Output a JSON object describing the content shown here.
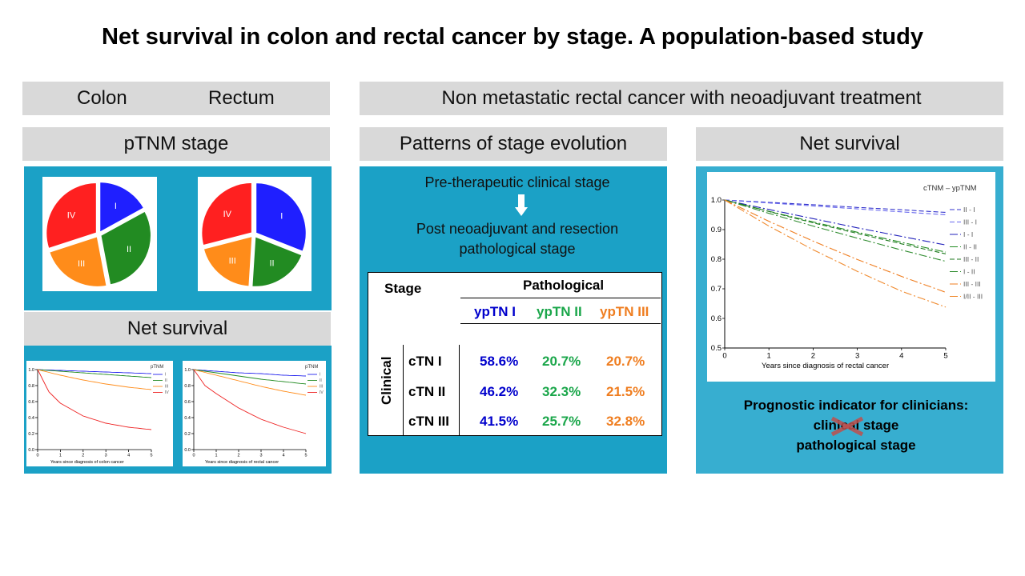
{
  "title": "Net survival in colon and rectal cancer by stage. A population-based study",
  "left_header": {
    "colon": "Colon",
    "rectum": "Rectum"
  },
  "right_header": "Non metastatic rectal cancer with neoadjuvant treatment",
  "sections": {
    "ptnm": "pTNM stage",
    "net_survival_left": "Net survival",
    "patterns": "Patterns of stage evolution",
    "net_survival_right": "Net survival"
  },
  "flow": {
    "step1": "Pre-therapeutic  clinical stage",
    "step2": "Post neoadjuvant and resection",
    "step3": "pathological stage"
  },
  "table": {
    "stage_label": "Stage",
    "pathological_label": "Pathological",
    "clinical_label": "Clinical",
    "cols": [
      "ypTN I",
      "ypTN II",
      "ypTN III"
    ],
    "rows": [
      {
        "label": "cTN I",
        "values": [
          "58.6%",
          "20.7%",
          "20.7%"
        ]
      },
      {
        "label": "cTN II",
        "values": [
          "46.2%",
          "32.3%",
          "21.5%"
        ]
      },
      {
        "label": "cTN III",
        "values": [
          "41.5%",
          "25.7%",
          "32.8%"
        ]
      }
    ]
  },
  "prognostic": {
    "line1": "Prognostic  indicator  for clinicians:",
    "line2": "clinical stage",
    "line3": "pathological stage"
  },
  "chart_data": [
    {
      "type": "pie",
      "title": "Colon",
      "slices": [
        {
          "label": "I",
          "value": 17,
          "color": "#1f1fff"
        },
        {
          "label": "II",
          "value": 30,
          "color": "#228b22"
        },
        {
          "label": "III",
          "value": 23,
          "color": "#ff8c1a"
        },
        {
          "label": "IV",
          "value": 30,
          "color": "#ff2020"
        }
      ]
    },
    {
      "type": "pie",
      "title": "Rectum",
      "slices": [
        {
          "label": "I",
          "value": 31,
          "color": "#1f1fff"
        },
        {
          "label": "II",
          "value": 20,
          "color": "#228b22"
        },
        {
          "label": "III",
          "value": 20,
          "color": "#ff8c1a"
        },
        {
          "label": "IV",
          "value": 29,
          "color": "#ff2020"
        }
      ]
    },
    {
      "type": "line",
      "legend_title": "pTNM",
      "xlabel": "Years  since  diagnosis  of   colon  cancer",
      "xlim": [
        0,
        5
      ],
      "ylim": [
        0,
        1
      ],
      "x_ticks": [
        0,
        1,
        2,
        3,
        4,
        5
      ],
      "y_ticks": [
        "0.0",
        "0.2",
        "0.4",
        "0.6",
        "0.8",
        "1.0"
      ],
      "series": [
        {
          "name": "I",
          "color": "#2222ee",
          "x": [
            0,
            1,
            2,
            3,
            4,
            5
          ],
          "y": [
            1.0,
            0.99,
            0.98,
            0.97,
            0.96,
            0.95
          ]
        },
        {
          "name": "II",
          "color": "#228b22",
          "x": [
            0,
            1,
            2,
            3,
            4,
            5
          ],
          "y": [
            1.0,
            0.98,
            0.96,
            0.94,
            0.92,
            0.9
          ]
        },
        {
          "name": "III",
          "color": "#ff8c1a",
          "x": [
            0,
            1,
            2,
            3,
            4,
            5
          ],
          "y": [
            1.0,
            0.93,
            0.87,
            0.82,
            0.78,
            0.75
          ]
        },
        {
          "name": "IV",
          "color": "#ee2222",
          "x": [
            0,
            0.5,
            1,
            2,
            3,
            4,
            5
          ],
          "y": [
            1.0,
            0.72,
            0.58,
            0.42,
            0.33,
            0.28,
            0.25
          ]
        }
      ]
    },
    {
      "type": "line",
      "legend_title": "pTNM",
      "xlabel": "Years since diagnosis of rectal cancer",
      "xlim": [
        0,
        5
      ],
      "ylim": [
        0,
        1
      ],
      "x_ticks": [
        0,
        1,
        2,
        3,
        4,
        5
      ],
      "y_ticks": [
        "0.0",
        "0.2",
        "0.4",
        "0.6",
        "0.8",
        "1.0"
      ],
      "series": [
        {
          "name": "I",
          "color": "#2222ee",
          "x": [
            0,
            1,
            2,
            3,
            4,
            5
          ],
          "y": [
            1.0,
            0.98,
            0.96,
            0.95,
            0.93,
            0.92
          ]
        },
        {
          "name": "II",
          "color": "#228b22",
          "x": [
            0,
            1,
            2,
            3,
            4,
            5
          ],
          "y": [
            1.0,
            0.96,
            0.92,
            0.88,
            0.85,
            0.82
          ]
        },
        {
          "name": "III",
          "color": "#ff8c1a",
          "x": [
            0,
            1,
            2,
            3,
            4,
            5
          ],
          "y": [
            1.0,
            0.93,
            0.86,
            0.79,
            0.73,
            0.68
          ]
        },
        {
          "name": "IV",
          "color": "#ee2222",
          "x": [
            0,
            0.5,
            1,
            2,
            3,
            4,
            5
          ],
          "y": [
            1.0,
            0.8,
            0.7,
            0.52,
            0.38,
            0.28,
            0.2
          ]
        }
      ]
    },
    {
      "type": "line",
      "legend_title": "cTNM – ypTNM",
      "xlabel": "Years since diagnosis of rectal cancer",
      "xlim": [
        0,
        5
      ],
      "ylim": [
        0.5,
        1.0
      ],
      "x_ticks": [
        0,
        1,
        2,
        3,
        4,
        5
      ],
      "y_ticks": [
        "0.5",
        "0.6",
        "0.7",
        "0.8",
        "0.9",
        "1.0"
      ],
      "series": [
        {
          "name": "II - I",
          "color": "#3333cc",
          "dash": "6,3",
          "x": [
            0,
            1,
            2,
            3,
            4,
            5
          ],
          "y": [
            1.0,
            0.992,
            0.984,
            0.975,
            0.967,
            0.958
          ]
        },
        {
          "name": "III - I",
          "color": "#6a6aee",
          "dash": "6,3",
          "x": [
            0,
            1,
            2,
            3,
            4,
            5
          ],
          "y": [
            1.0,
            0.99,
            0.98,
            0.97,
            0.96,
            0.95
          ]
        },
        {
          "name": "I - I",
          "color": "#2222bb",
          "dash": "10,3,2,3",
          "x": [
            0,
            1,
            2,
            3,
            4,
            5
          ],
          "y": [
            1.0,
            0.968,
            0.937,
            0.906,
            0.877,
            0.848
          ]
        },
        {
          "name": "II - II",
          "color": "#228b22",
          "dash": "10,3,2,3",
          "x": [
            0,
            1,
            2,
            3,
            4,
            5
          ],
          "y": [
            1.0,
            0.962,
            0.926,
            0.891,
            0.857,
            0.824
          ]
        },
        {
          "name": "III - II",
          "color": "#1f7a1f",
          "dash": "6,3",
          "x": [
            0,
            1,
            2,
            3,
            4,
            5
          ],
          "y": [
            1.0,
            0.961,
            0.923,
            0.887,
            0.852,
            0.818
          ]
        },
        {
          "name": "I - II",
          "color": "#2e8b2e",
          "dash": "10,3,2,3",
          "x": [
            0,
            1,
            2,
            3,
            4,
            5
          ],
          "y": [
            1.0,
            0.955,
            0.912,
            0.871,
            0.831,
            0.793
          ]
        },
        {
          "name": "III - III",
          "color": "#ef7d1f",
          "dash": "10,3,2,3",
          "x": [
            0,
            1,
            2,
            3,
            4,
            5
          ],
          "y": [
            1.0,
            0.928,
            0.861,
            0.799,
            0.742,
            0.688
          ]
        },
        {
          "name": "I/II - III",
          "color": "#f08a2e",
          "dash": "10,3,2,3",
          "x": [
            0,
            1,
            2,
            3,
            4,
            5
          ],
          "y": [
            1.0,
            0.912,
            0.832,
            0.759,
            0.692,
            0.638
          ]
        }
      ]
    }
  ]
}
